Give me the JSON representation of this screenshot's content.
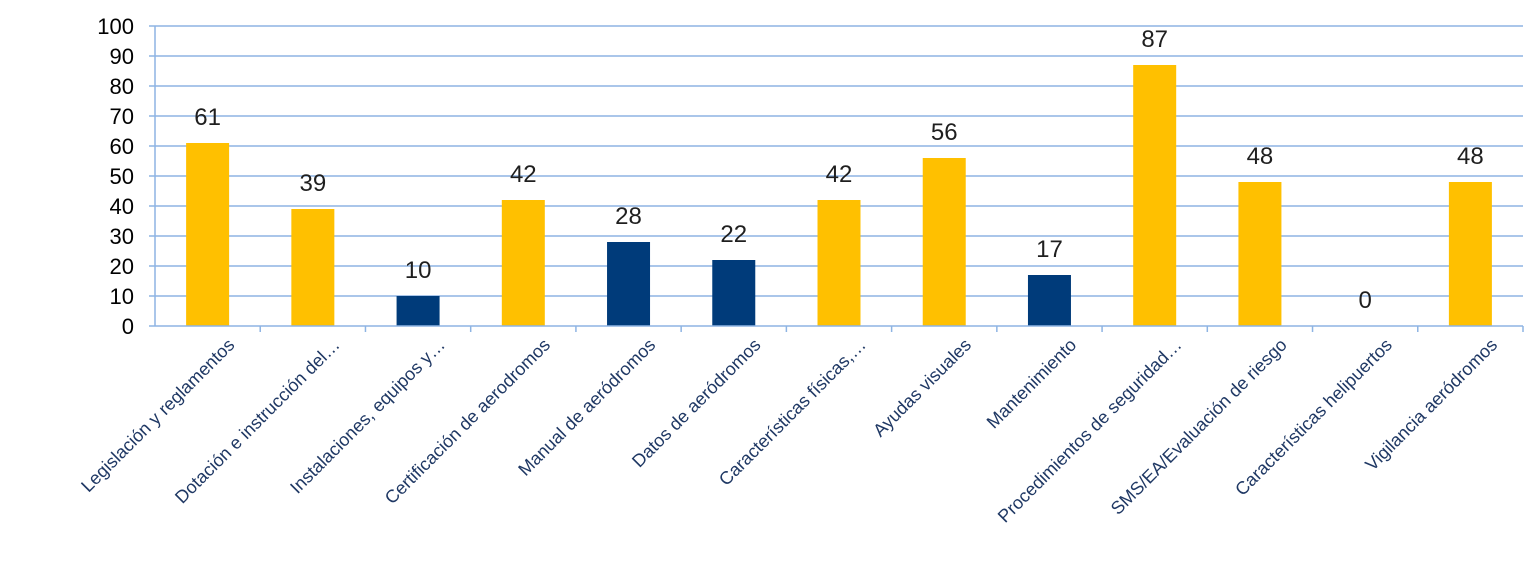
{
  "chart_data": {
    "type": "bar",
    "categories": [
      "Legislación y reglamentos",
      "Dotación e instrucción del…",
      "Instalaciones, equipos y…",
      "Certificación de aerodromos",
      "Manual de aeródromos",
      "Datos de aeródromos",
      "Características físicas,…",
      "Ayudas visuales",
      "Mantenimiento",
      "Procedimientos de seguridad…",
      "SMS/EA/Evaluación de riesgo",
      "Características helipuertos",
      "Vigilancia aeródromos"
    ],
    "values": [
      61,
      39,
      10,
      42,
      28,
      22,
      42,
      56,
      17,
      87,
      48,
      0,
      48
    ],
    "bar_colors": [
      "#FFC000",
      "#FFC000",
      "#003B7A",
      "#FFC000",
      "#003B7A",
      "#003B7A",
      "#FFC000",
      "#FFC000",
      "#003B7A",
      "#FFC000",
      "#FFC000",
      "#FFC000",
      "#FFC000"
    ],
    "data_labels": [
      "61",
      "39",
      "10",
      "42",
      "28",
      "22",
      "42",
      "56",
      "17",
      "87",
      "48",
      "0",
      "48"
    ],
    "ylim": [
      0,
      100
    ],
    "yticks": [
      "0",
      "10",
      "20",
      "30",
      "40",
      "50",
      "60",
      "70",
      "80",
      "90",
      "100"
    ],
    "grid": true,
    "gridline_color": "#8EB4E3",
    "title": "",
    "xlabel": "",
    "ylabel": ""
  }
}
